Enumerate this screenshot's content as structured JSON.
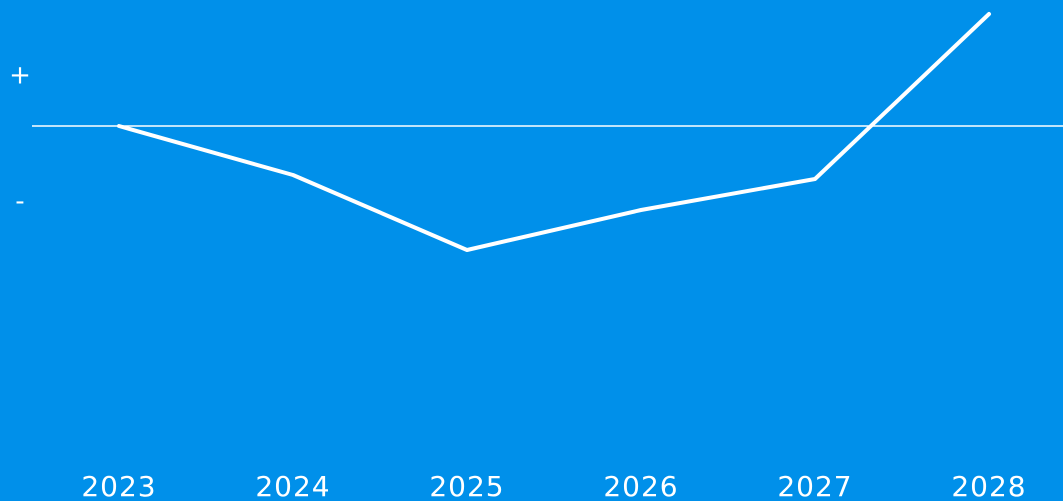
{
  "chart_data": {
    "type": "line",
    "categories": [
      "2023",
      "2024",
      "2025",
      "2026",
      "2027",
      "2028"
    ],
    "series": [
      {
        "name": null,
        "color": "#ffffff",
        "values": [
          0,
          -4.9,
          -12.4,
          -8.4,
          -5.3,
          11.2
        ]
      }
    ],
    "ylim": [
      -31.4,
      12.6
    ],
    "yticks": [
      {
        "value": 5,
        "label": "+"
      },
      {
        "value": -7.6,
        "label": "-"
      }
    ],
    "baseline": 0,
    "background": "#0090ea"
  }
}
